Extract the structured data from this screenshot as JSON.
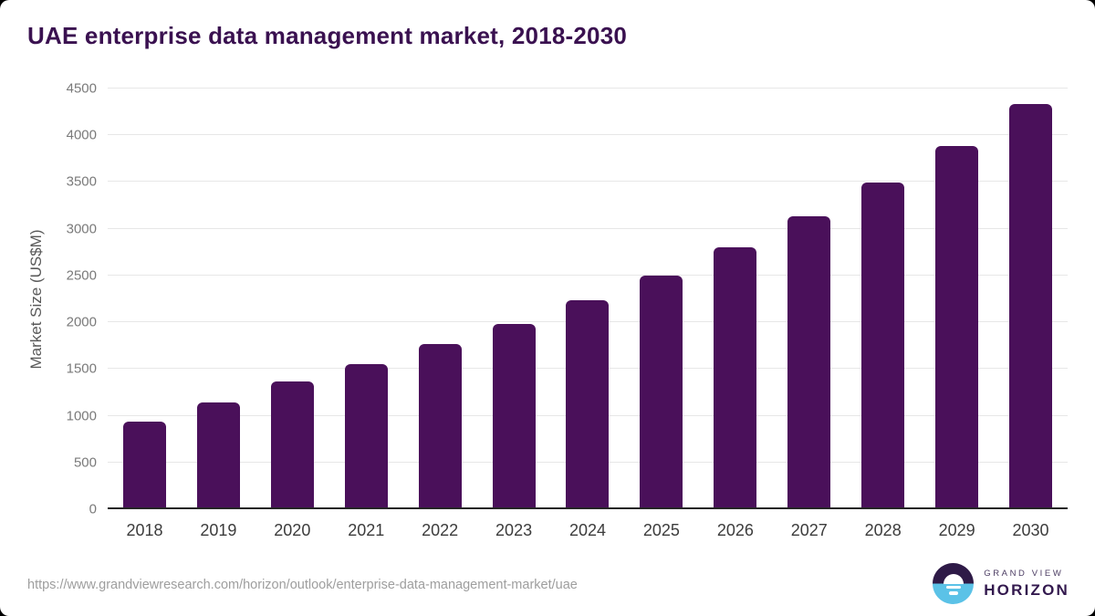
{
  "title": "UAE enterprise data management market, 2018-2030",
  "footer": {
    "source_url": "https://www.grandviewresearch.com/horizon/outlook/enterprise-data-management-market/uae"
  },
  "logo": {
    "line1": "GRAND VIEW",
    "line2": "HORIZON",
    "icon": "horizon-sun-icon"
  },
  "colors": {
    "bar": "#4A105A",
    "title_text": "#3A1150",
    "axis_line": "#262626",
    "gridline": "#E7E7E7",
    "y_tick_label": "#7A7A7A",
    "x_tick_label": "#3C3C3C",
    "logo_purple": "#2E1A47",
    "logo_blue": "#5BC2E7"
  },
  "chart_data": {
    "type": "bar",
    "title": "UAE enterprise data management market, 2018-2030",
    "categories": [
      "2018",
      "2019",
      "2020",
      "2021",
      "2022",
      "2023",
      "2024",
      "2025",
      "2026",
      "2027",
      "2028",
      "2029",
      "2030"
    ],
    "values": [
      940,
      1140,
      1370,
      1555,
      1765,
      1985,
      2235,
      2500,
      2800,
      3130,
      3490,
      3890,
      4335
    ],
    "xlabel": "",
    "ylabel": "Market Size (US$M)",
    "ylim": [
      0,
      4500
    ],
    "y_ticks": [
      0,
      500,
      1000,
      1500,
      2000,
      2500,
      3000,
      3500,
      4000,
      4500
    ],
    "grid": "horizontal",
    "legend": "none",
    "bar_color": "#4A105A"
  }
}
